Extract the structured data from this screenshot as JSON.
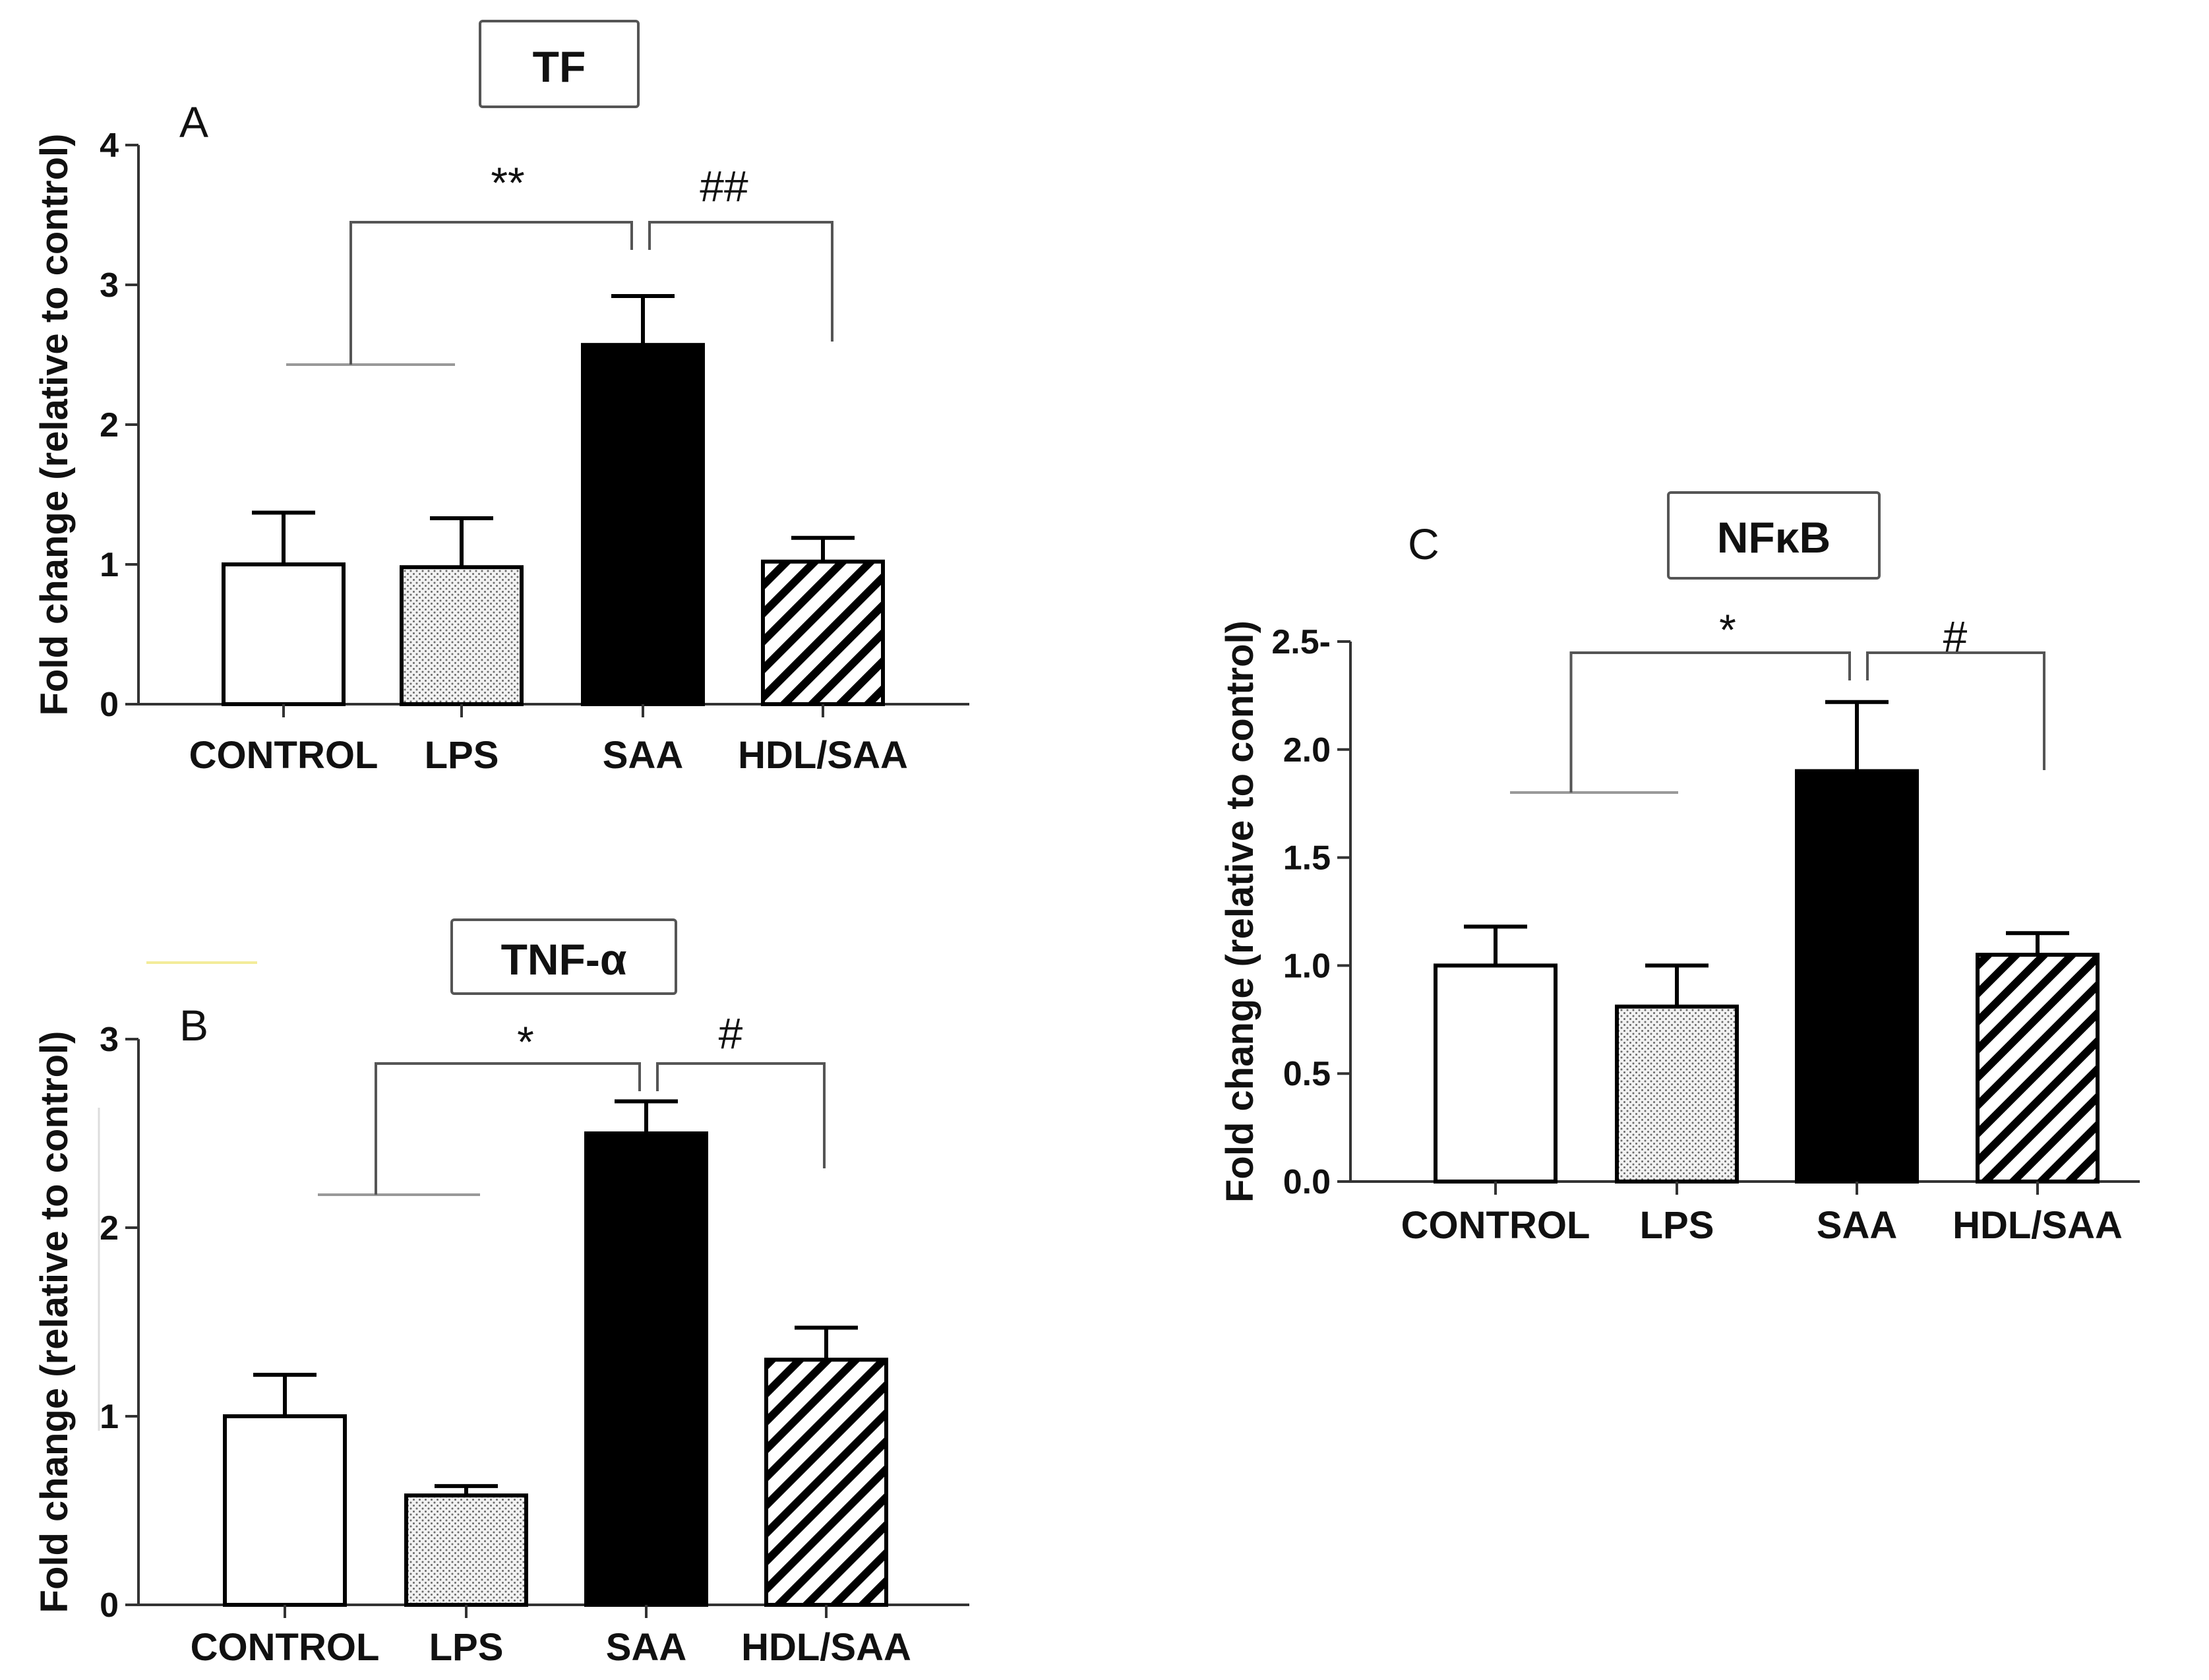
{
  "chart_data": [
    {
      "id": "A",
      "type": "bar",
      "title": "TF",
      "panel_letter": "A",
      "ylabel": "Fold change (relative to control)",
      "categories": [
        "CONTROL",
        "LPS",
        "SAA",
        "HDL/SAA"
      ],
      "values": [
        1.0,
        0.98,
        2.57,
        1.02
      ],
      "errors": [
        0.37,
        0.35,
        0.35,
        0.17
      ],
      "patterns": [
        "white",
        "dotted",
        "black",
        "hatched"
      ],
      "ylim": [
        0,
        4
      ],
      "yticks": [
        0,
        1,
        2,
        3,
        4
      ],
      "ytick_labels": [
        "0",
        "1",
        "2",
        "3",
        "4"
      ],
      "comparisons": [
        {
          "label": "**",
          "description": "CONTROL and LPS vs SAA"
        },
        {
          "label": "##",
          "description": "SAA vs HDL/SAA"
        }
      ]
    },
    {
      "id": "B",
      "type": "bar",
      "title": "TNF-α",
      "panel_letter": "B",
      "ylabel": "Fold change (relative to control)",
      "categories": [
        "CONTROL",
        "LPS",
        "SAA",
        "HDL/SAA"
      ],
      "values": [
        1.0,
        0.58,
        2.5,
        1.3
      ],
      "errors": [
        0.22,
        0.05,
        0.17,
        0.17
      ],
      "patterns": [
        "white",
        "dotted",
        "black",
        "hatched"
      ],
      "ylim": [
        0,
        3
      ],
      "yticks": [
        0,
        1,
        2,
        3
      ],
      "ytick_labels": [
        "0",
        "1",
        "2",
        "3"
      ],
      "comparisons": [
        {
          "label": "*",
          "description": "CONTROL and LPS vs SAA"
        },
        {
          "label": "#",
          "description": "SAA vs HDL/SAA"
        }
      ]
    },
    {
      "id": "C",
      "type": "bar",
      "title": "NFκB",
      "panel_letter": "C",
      "ylabel": "Fold change (relative to control)",
      "categories": [
        "CONTROL",
        "LPS",
        "SAA",
        "HDL/SAA"
      ],
      "values": [
        1.0,
        0.81,
        1.9,
        1.05
      ],
      "errors": [
        0.18,
        0.19,
        0.32,
        0.1
      ],
      "patterns": [
        "white",
        "dotted",
        "black",
        "hatched"
      ],
      "ylim": [
        0,
        2.5
      ],
      "yticks": [
        0,
        0.5,
        1.0,
        1.5,
        2.0,
        2.5
      ],
      "ytick_labels": [
        "0.0",
        "0.5",
        "1.0",
        "1.5",
        "2.0",
        "2.5-"
      ],
      "comparisons": [
        {
          "label": "*",
          "description": "CONTROL and LPS vs SAA"
        },
        {
          "label": "#",
          "description": "SAA vs HDL/SAA"
        }
      ]
    }
  ]
}
